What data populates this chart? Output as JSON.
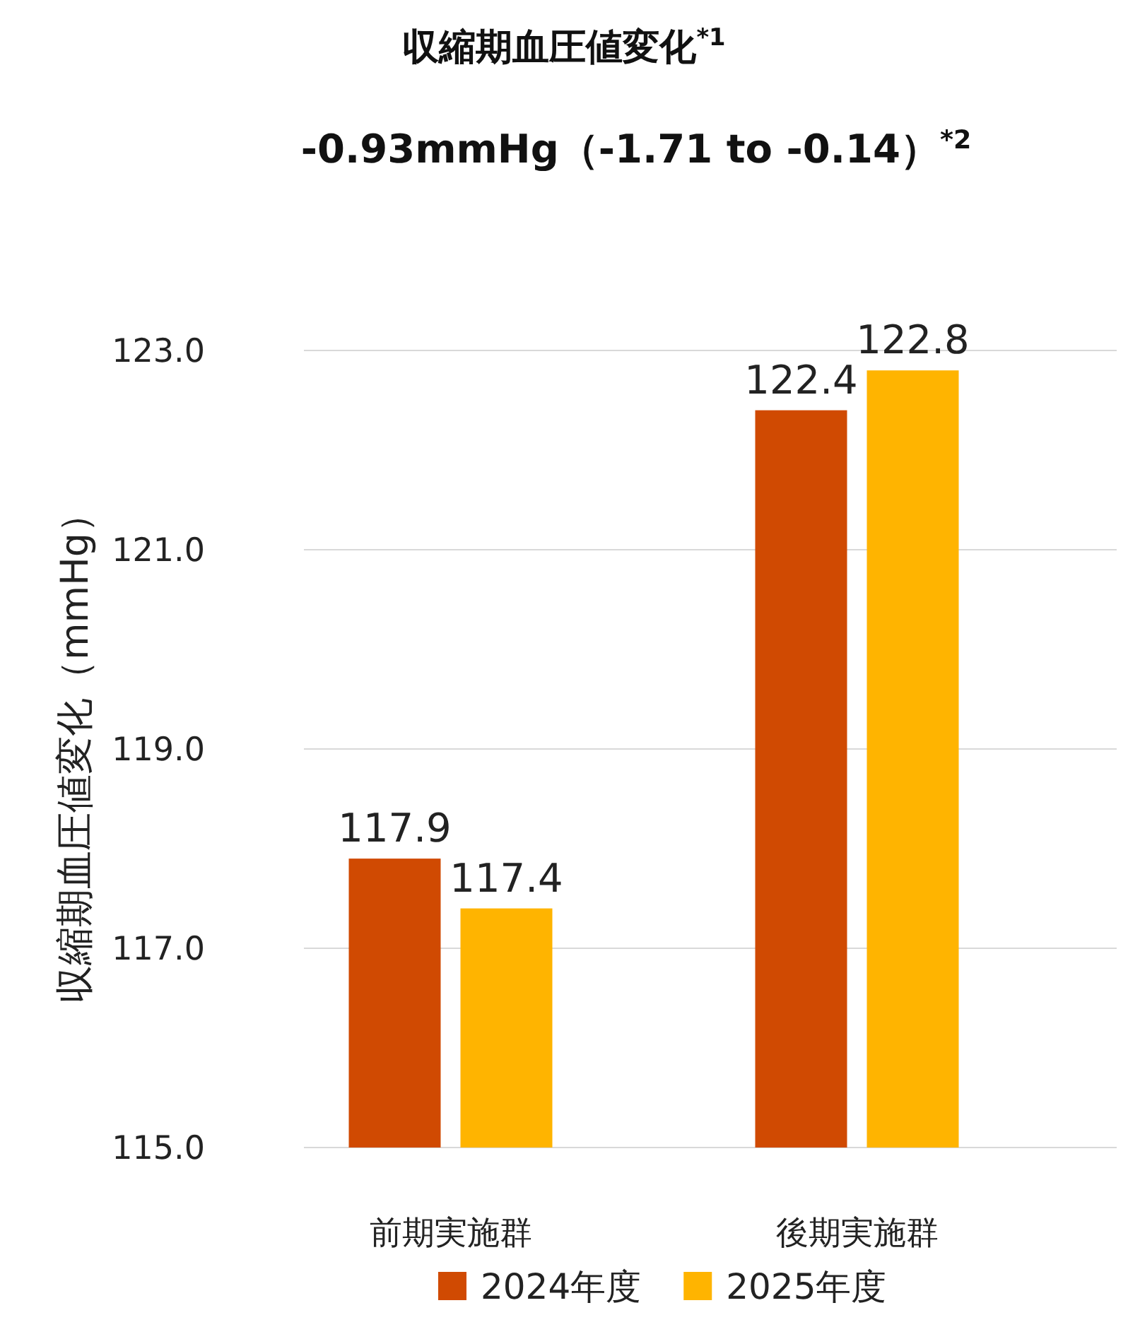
{
  "chart_data": {
    "type": "bar",
    "title": "収縮期血圧値変化$^{*1}$",
    "subtitle": "-0.93mmHg（-1.71 to -0.14）$^{*2}$",
    "ylabel": "収縮期血圧値変化（mmHg）",
    "categories": [
      "前期実施群",
      "後期実施群"
    ],
    "series": [
      {
        "name": "2024年度",
        "color": "#d04a02",
        "values": [
          117.9,
          122.4
        ]
      },
      {
        "name": "2025年度",
        "color": "#ffb400",
        "values": [
          117.4,
          122.8
        ]
      }
    ],
    "ylim": [
      115,
      123
    ],
    "yticks": [
      {
        "value": 115,
        "label": "115.0"
      },
      {
        "value": 117,
        "label": "117.0"
      },
      {
        "value": 119,
        "label": "119.0"
      },
      {
        "value": 121,
        "label": "121.0"
      },
      {
        "value": 123,
        "label": "123.0"
      }
    ],
    "grid": "y",
    "data_labels": true,
    "legend": "bottom"
  }
}
